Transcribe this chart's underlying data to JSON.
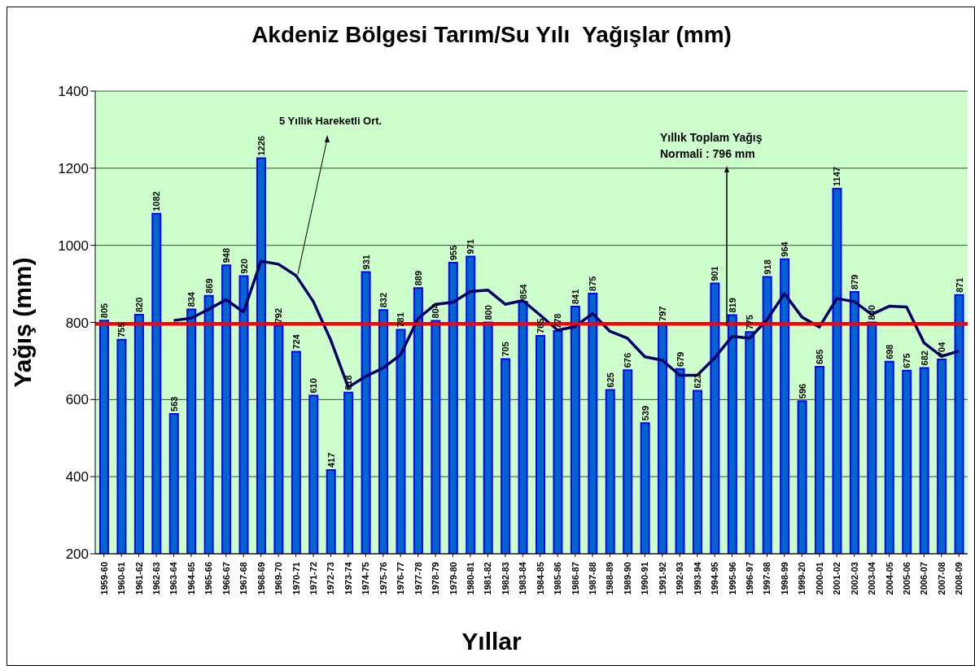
{
  "chart_data": {
    "type": "bar",
    "title": "Akdeniz Bölgesi Tarım/Su Yılı  Yağışlar (mm)",
    "xlabel": "Yıllar",
    "ylabel": "Yağış (mm)",
    "categories": [
      "1959-60",
      "1960-61",
      "1961-62",
      "1962-63",
      "1963-64",
      "1964-65",
      "1965-66",
      "1966-67",
      "1967-68",
      "1968-69",
      "1969-70",
      "1970-71",
      "1971-72",
      "1972-73",
      "1973-74",
      "1974-75",
      "1975-76",
      "1976-77",
      "1977-78",
      "1978-79",
      "1979-80",
      "1980-81",
      "1981-82",
      "1982-83",
      "1983-84",
      "1984-85",
      "1985-86",
      "1986-87",
      "1987-88",
      "1988-89",
      "1989-90",
      "1990-91",
      "1991-92",
      "1992-93",
      "1993-94",
      "1994-95",
      "1995-96",
      "1996-97",
      "1997-98",
      "1998-99",
      "1999-20",
      "2000-01",
      "2001-02",
      "2002-03",
      "2003-04",
      "2004-05",
      "2005-06",
      "2006-07",
      "2007-08",
      "2008-09"
    ],
    "series": [
      {
        "color": "#0066cc",
        "values": [
          805,
          755,
          820,
          1082,
          563,
          834,
          869,
          948,
          920,
          1226,
          792,
          724,
          610,
          417,
          618,
          931,
          832,
          781,
          889,
          804,
          955,
          971,
          800,
          705,
          854,
          765,
          778,
          841,
          875,
          625,
          676,
          539,
          797,
          679,
          623,
          901,
          819,
          775,
          918,
          964,
          596,
          685,
          1147,
          879,
          800,
          698,
          675,
          682,
          704,
          871
        ],
        "value_labels": [
          "805",
          "755",
          "820",
          "1082",
          "563",
          "834",
          "869",
          "948",
          "920",
          "1226",
          "792",
          "724",
          "610",
          "417",
          "618",
          "931",
          "832",
          "781",
          "889",
          "804",
          "955",
          "971",
          "800",
          "705",
          "854",
          "765",
          "778",
          "841",
          "875",
          "625",
          "676",
          "539",
          "797",
          "679",
          "623",
          "901",
          "819",
          "775",
          "918",
          "964",
          "596",
          "685",
          "1147",
          "879",
          "800",
          "698",
          "675",
          "682",
          "704",
          "871"
        ]
      },
      {
        "type": "line",
        "name": "5 Yıllık Hareketli Ort.",
        "color": "#000066",
        "values": [
          null,
          null,
          null,
          null,
          805,
          811,
          834,
          859,
          827,
          959,
          951,
          922,
          854,
          754,
          632,
          660,
          682,
          716,
          810,
          847,
          852,
          880,
          884,
          847,
          857,
          819,
          780,
          789,
          823,
          777,
          759,
          711,
          702,
          663,
          663,
          708,
          764,
          759,
          807,
          875,
          814,
          788,
          862,
          854,
          821,
          842,
          840,
          747,
          712,
          726
        ]
      }
    ],
    "ylim": [
      200,
      1400
    ],
    "yticks": [
      200,
      400,
      600,
      800,
      1000,
      1200,
      1400
    ],
    "grid": "y",
    "legend": false,
    "marker": "none",
    "line_style": "solid",
    "ref_lines": [
      {
        "axis": "y",
        "value": 796,
        "label": "Yıllık Toplam Yağış\nNormali : 796 mm",
        "color": "#ff0000"
      }
    ]
  }
}
